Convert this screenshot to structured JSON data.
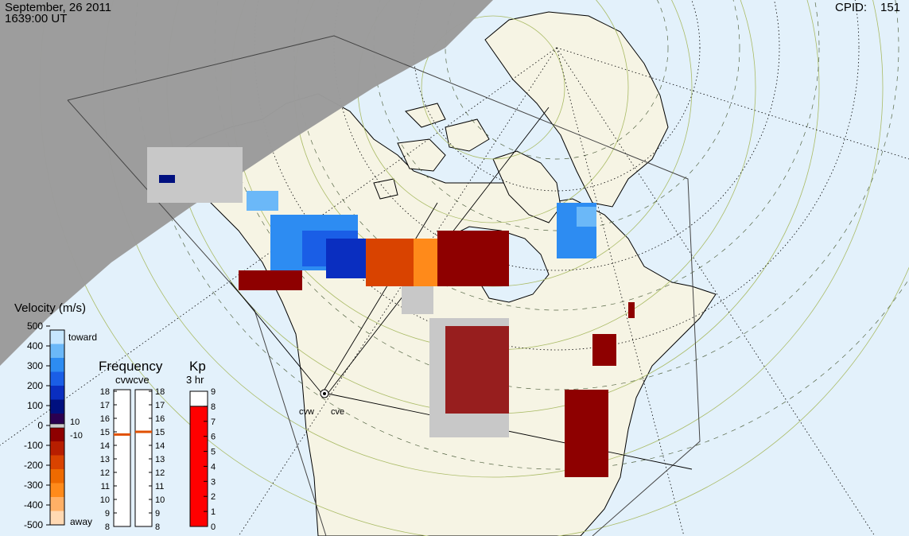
{
  "header": {
    "date": "September, 26 2011",
    "time": "1639:00 UT",
    "cpid_label": "CPID:",
    "cpid_value": "151"
  },
  "colors": {
    "night_shade": "#9b9b9b",
    "ocean": "#e3f1fb",
    "land": "#f6f4e4",
    "ground_scatter": "#c8c8c8",
    "kp_bar": "#ff0000",
    "freq_marker": "#e05000"
  },
  "radars": [
    {
      "code": "cvw",
      "freq_mhz": 14.8
    },
    {
      "code": "cve",
      "freq_mhz": 15.0
    }
  ],
  "legend": {
    "velocity": {
      "title": "Velocity (m/s)",
      "toward_label": "toward",
      "away_label": "away",
      "ticks": [
        "500",
        "400",
        "300",
        "200",
        "100",
        "0",
        "-100",
        "-200",
        "-300",
        "-400",
        "-500"
      ],
      "threshold_pos": "10",
      "threshold_neg": "-10",
      "scale_colors": [
        "#ffd9b3",
        "#ffb066",
        "#ff8a1a",
        "#ee6a00",
        "#d94300",
        "#b71e00",
        "#8e0000",
        "#2b0051",
        "#00107f",
        "#0a2ec0",
        "#1a5ee6",
        "#2d8cf2",
        "#6bb8f8",
        "#c5e6ff"
      ]
    },
    "frequency": {
      "title": "Frequency",
      "subtitle": "cvwcve",
      "ticks_left": [
        "18",
        "17",
        "16",
        "15",
        "14",
        "13",
        "12",
        "11",
        "10",
        "9",
        "8"
      ],
      "ticks_right": [
        "18",
        "17",
        "16",
        "15",
        "14",
        "13",
        "12",
        "11",
        "10",
        "9",
        "8"
      ]
    },
    "kp": {
      "title": "Kp",
      "subtitle": "3 hr",
      "ticks": [
        "9",
        "8",
        "7",
        "6",
        "5",
        "4",
        "3",
        "2",
        "1",
        "0"
      ],
      "value": 8
    }
  }
}
